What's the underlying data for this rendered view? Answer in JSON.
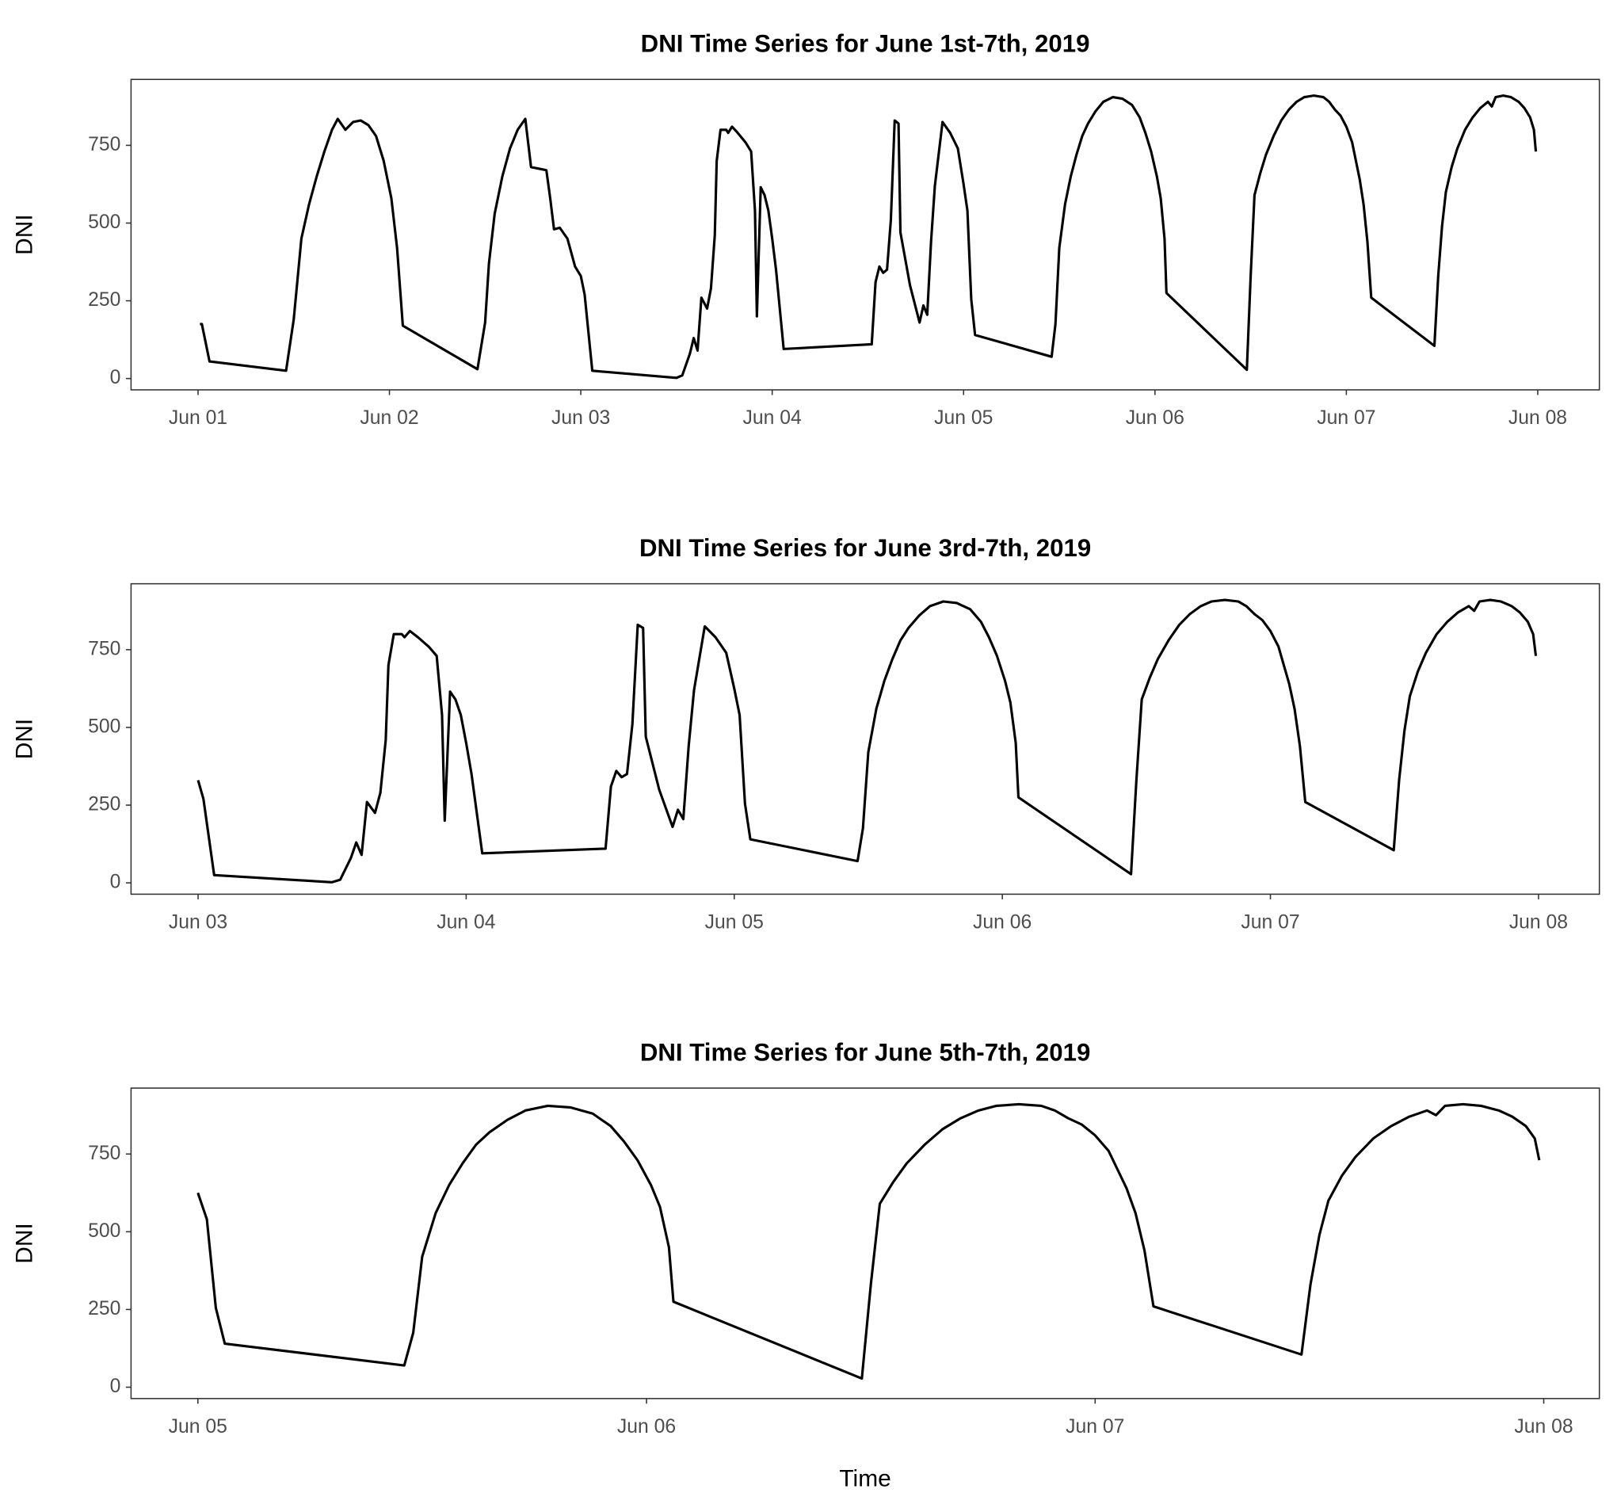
{
  "chart_data": [
    {
      "type": "line",
      "title": "DNI Time Series for June 1st-7th, 2019",
      "y_label": "DNI",
      "color": "#000000",
      "xlim": [
        0.65,
        8.322
      ],
      "ylim": [
        -36.5,
        962
      ],
      "xticks": [
        {
          "value": 1,
          "label": "Jun 01"
        },
        {
          "value": 2,
          "label": "Jun 02"
        },
        {
          "value": 3,
          "label": "Jun 03"
        },
        {
          "value": 4,
          "label": "Jun 04"
        },
        {
          "value": 5,
          "label": "Jun 05"
        },
        {
          "value": 6,
          "label": "Jun 06"
        },
        {
          "value": 7,
          "label": "Jun 07"
        },
        {
          "value": 8,
          "label": "Jun 08"
        }
      ],
      "yticks": [
        0,
        250,
        500,
        750
      ],
      "x": [
        1.01,
        1.02,
        1.06,
        1.46,
        1.5,
        1.54,
        1.58,
        1.62,
        1.66,
        1.7,
        1.73,
        1.77,
        1.81,
        1.85,
        1.89,
        1.93,
        1.97,
        2.01,
        2.04,
        2.07,
        2.46,
        2.5,
        2.52,
        2.55,
        2.59,
        2.63,
        2.67,
        2.71,
        2.74,
        2.78,
        2.82,
        2.84,
        2.86,
        2.89,
        2.93,
        2.97,
        3.0,
        3.02,
        3.06,
        3.48,
        3.5,
        3.53,
        3.57,
        3.59,
        3.61,
        3.63,
        3.66,
        3.68,
        3.7,
        3.71,
        3.73,
        3.76,
        3.77,
        3.79,
        3.82,
        3.86,
        3.89,
        3.91,
        3.92,
        3.94,
        3.96,
        3.98,
        4.0,
        4.02,
        4.06,
        4.52,
        4.54,
        4.56,
        4.58,
        4.6,
        4.62,
        4.64,
        4.66,
        4.67,
        4.72,
        4.77,
        4.79,
        4.81,
        4.83,
        4.85,
        4.89,
        4.93,
        4.97,
        5.0,
        5.02,
        5.04,
        5.06,
        5.46,
        5.48,
        5.5,
        5.53,
        5.56,
        5.59,
        5.62,
        5.65,
        5.69,
        5.73,
        5.78,
        5.83,
        5.88,
        5.92,
        5.95,
        5.98,
        6.01,
        6.03,
        6.05,
        6.06,
        6.48,
        6.5,
        6.52,
        6.55,
        6.58,
        6.62,
        6.66,
        6.7,
        6.74,
        6.78,
        6.83,
        6.88,
        6.91,
        6.94,
        6.97,
        7.0,
        7.03,
        7.05,
        7.07,
        7.09,
        7.11,
        7.13,
        7.46,
        7.48,
        7.5,
        7.52,
        7.55,
        7.58,
        7.62,
        7.66,
        7.7,
        7.74,
        7.76,
        7.78,
        7.82,
        7.86,
        7.9,
        7.93,
        7.96,
        7.98,
        7.99
      ],
      "values": [
        175,
        175,
        55,
        25,
        190,
        450,
        560,
        650,
        730,
        800,
        835,
        800,
        825,
        830,
        815,
        780,
        700,
        580,
        420,
        170,
        30,
        180,
        370,
        530,
        650,
        740,
        800,
        835,
        680,
        675,
        670,
        580,
        480,
        485,
        450,
        360,
        330,
        270,
        25,
        3,
        2,
        10,
        80,
        130,
        90,
        260,
        225,
        290,
        460,
        700,
        800,
        800,
        790,
        810,
        790,
        760,
        730,
        540,
        200,
        615,
        590,
        540,
        450,
        350,
        95,
        110,
        310,
        360,
        340,
        350,
        510,
        830,
        820,
        470,
        300,
        180,
        235,
        205,
        440,
        620,
        825,
        790,
        740,
        625,
        540,
        255,
        140,
        70,
        175,
        420,
        560,
        650,
        720,
        780,
        820,
        860,
        890,
        905,
        900,
        880,
        840,
        790,
        730,
        650,
        580,
        450,
        275,
        28,
        330,
        590,
        660,
        720,
        780,
        830,
        865,
        890,
        905,
        910,
        905,
        890,
        865,
        845,
        810,
        760,
        700,
        640,
        560,
        440,
        260,
        105,
        330,
        490,
        600,
        680,
        740,
        800,
        840,
        870,
        890,
        875,
        905,
        910,
        905,
        890,
        870,
        840,
        800,
        730
      ]
    },
    {
      "type": "line",
      "title": "DNI Time Series for June 3rd-7th, 2019",
      "y_label": "DNI",
      "color": "#000000",
      "xlim": [
        2.75,
        8.227
      ],
      "ylim": [
        -36.5,
        962
      ],
      "xticks": [
        {
          "value": 3,
          "label": "Jun 03"
        },
        {
          "value": 4,
          "label": "Jun 04"
        },
        {
          "value": 5,
          "label": "Jun 05"
        },
        {
          "value": 6,
          "label": "Jun 06"
        },
        {
          "value": 7,
          "label": "Jun 07"
        },
        {
          "value": 8,
          "label": "Jun 08"
        }
      ],
      "yticks": [
        0,
        250,
        500,
        750
      ],
      "x": [
        3.0,
        3.02,
        3.06,
        3.48,
        3.5,
        3.53,
        3.57,
        3.59,
        3.61,
        3.63,
        3.66,
        3.68,
        3.7,
        3.71,
        3.73,
        3.76,
        3.77,
        3.79,
        3.82,
        3.86,
        3.89,
        3.91,
        3.92,
        3.94,
        3.96,
        3.98,
        4.0,
        4.02,
        4.06,
        4.52,
        4.54,
        4.56,
        4.58,
        4.6,
        4.62,
        4.64,
        4.66,
        4.67,
        4.72,
        4.77,
        4.79,
        4.81,
        4.83,
        4.85,
        4.89,
        4.93,
        4.97,
        5.0,
        5.02,
        5.04,
        5.06,
        5.46,
        5.48,
        5.5,
        5.53,
        5.56,
        5.59,
        5.62,
        5.65,
        5.69,
        5.73,
        5.78,
        5.83,
        5.88,
        5.92,
        5.95,
        5.98,
        6.01,
        6.03,
        6.05,
        6.06,
        6.48,
        6.5,
        6.52,
        6.55,
        6.58,
        6.62,
        6.66,
        6.7,
        6.74,
        6.78,
        6.83,
        6.88,
        6.91,
        6.94,
        6.97,
        7.0,
        7.03,
        7.05,
        7.07,
        7.09,
        7.11,
        7.13,
        7.46,
        7.48,
        7.5,
        7.52,
        7.55,
        7.58,
        7.62,
        7.66,
        7.7,
        7.74,
        7.76,
        7.78,
        7.82,
        7.86,
        7.9,
        7.93,
        7.96,
        7.98,
        7.99
      ],
      "values": [
        330,
        270,
        25,
        3,
        2,
        10,
        80,
        130,
        90,
        260,
        225,
        290,
        460,
        700,
        800,
        800,
        790,
        810,
        790,
        760,
        730,
        540,
        200,
        615,
        590,
        540,
        450,
        350,
        95,
        110,
        310,
        360,
        340,
        350,
        510,
        830,
        820,
        470,
        300,
        180,
        235,
        205,
        440,
        620,
        825,
        790,
        740,
        625,
        540,
        255,
        140,
        70,
        175,
        420,
        560,
        650,
        720,
        780,
        820,
        860,
        890,
        905,
        900,
        880,
        840,
        790,
        730,
        650,
        580,
        450,
        275,
        28,
        330,
        590,
        660,
        720,
        780,
        830,
        865,
        890,
        905,
        910,
        905,
        890,
        865,
        845,
        810,
        760,
        700,
        640,
        560,
        440,
        260,
        105,
        330,
        490,
        600,
        680,
        740,
        800,
        840,
        870,
        890,
        875,
        905,
        910,
        905,
        890,
        870,
        840,
        800,
        730
      ]
    },
    {
      "type": "line",
      "title": "DNI Time Series for June 5th-7th, 2019",
      "y_label": "DNI",
      "x_label": "Time",
      "color": "#000000",
      "xlim": [
        4.851,
        8.124
      ],
      "ylim": [
        -36.5,
        962
      ],
      "xticks": [
        {
          "value": 5,
          "label": "Jun 05"
        },
        {
          "value": 6,
          "label": "Jun 06"
        },
        {
          "value": 7,
          "label": "Jun 07"
        },
        {
          "value": 8,
          "label": "Jun 08"
        }
      ],
      "yticks": [
        0,
        250,
        500,
        750
      ],
      "x": [
        5.0,
        5.02,
        5.04,
        5.06,
        5.46,
        5.48,
        5.5,
        5.53,
        5.56,
        5.59,
        5.62,
        5.65,
        5.69,
        5.73,
        5.78,
        5.83,
        5.88,
        5.92,
        5.95,
        5.98,
        6.01,
        6.03,
        6.05,
        6.06,
        6.48,
        6.5,
        6.52,
        6.55,
        6.58,
        6.62,
        6.66,
        6.7,
        6.74,
        6.78,
        6.83,
        6.88,
        6.91,
        6.94,
        6.97,
        7.0,
        7.03,
        7.05,
        7.07,
        7.09,
        7.11,
        7.13,
        7.46,
        7.48,
        7.5,
        7.52,
        7.55,
        7.58,
        7.62,
        7.66,
        7.7,
        7.74,
        7.76,
        7.78,
        7.82,
        7.86,
        7.9,
        7.93,
        7.96,
        7.98,
        7.99
      ],
      "values": [
        625,
        540,
        255,
        140,
        70,
        175,
        420,
        560,
        650,
        720,
        780,
        820,
        860,
        890,
        905,
        900,
        880,
        840,
        790,
        730,
        650,
        580,
        450,
        275,
        28,
        330,
        590,
        660,
        720,
        780,
        830,
        865,
        890,
        905,
        910,
        905,
        890,
        865,
        845,
        810,
        760,
        700,
        640,
        560,
        440,
        260,
        105,
        330,
        490,
        600,
        680,
        740,
        800,
        840,
        870,
        890,
        875,
        905,
        910,
        905,
        890,
        870,
        840,
        800,
        730
      ]
    }
  ]
}
